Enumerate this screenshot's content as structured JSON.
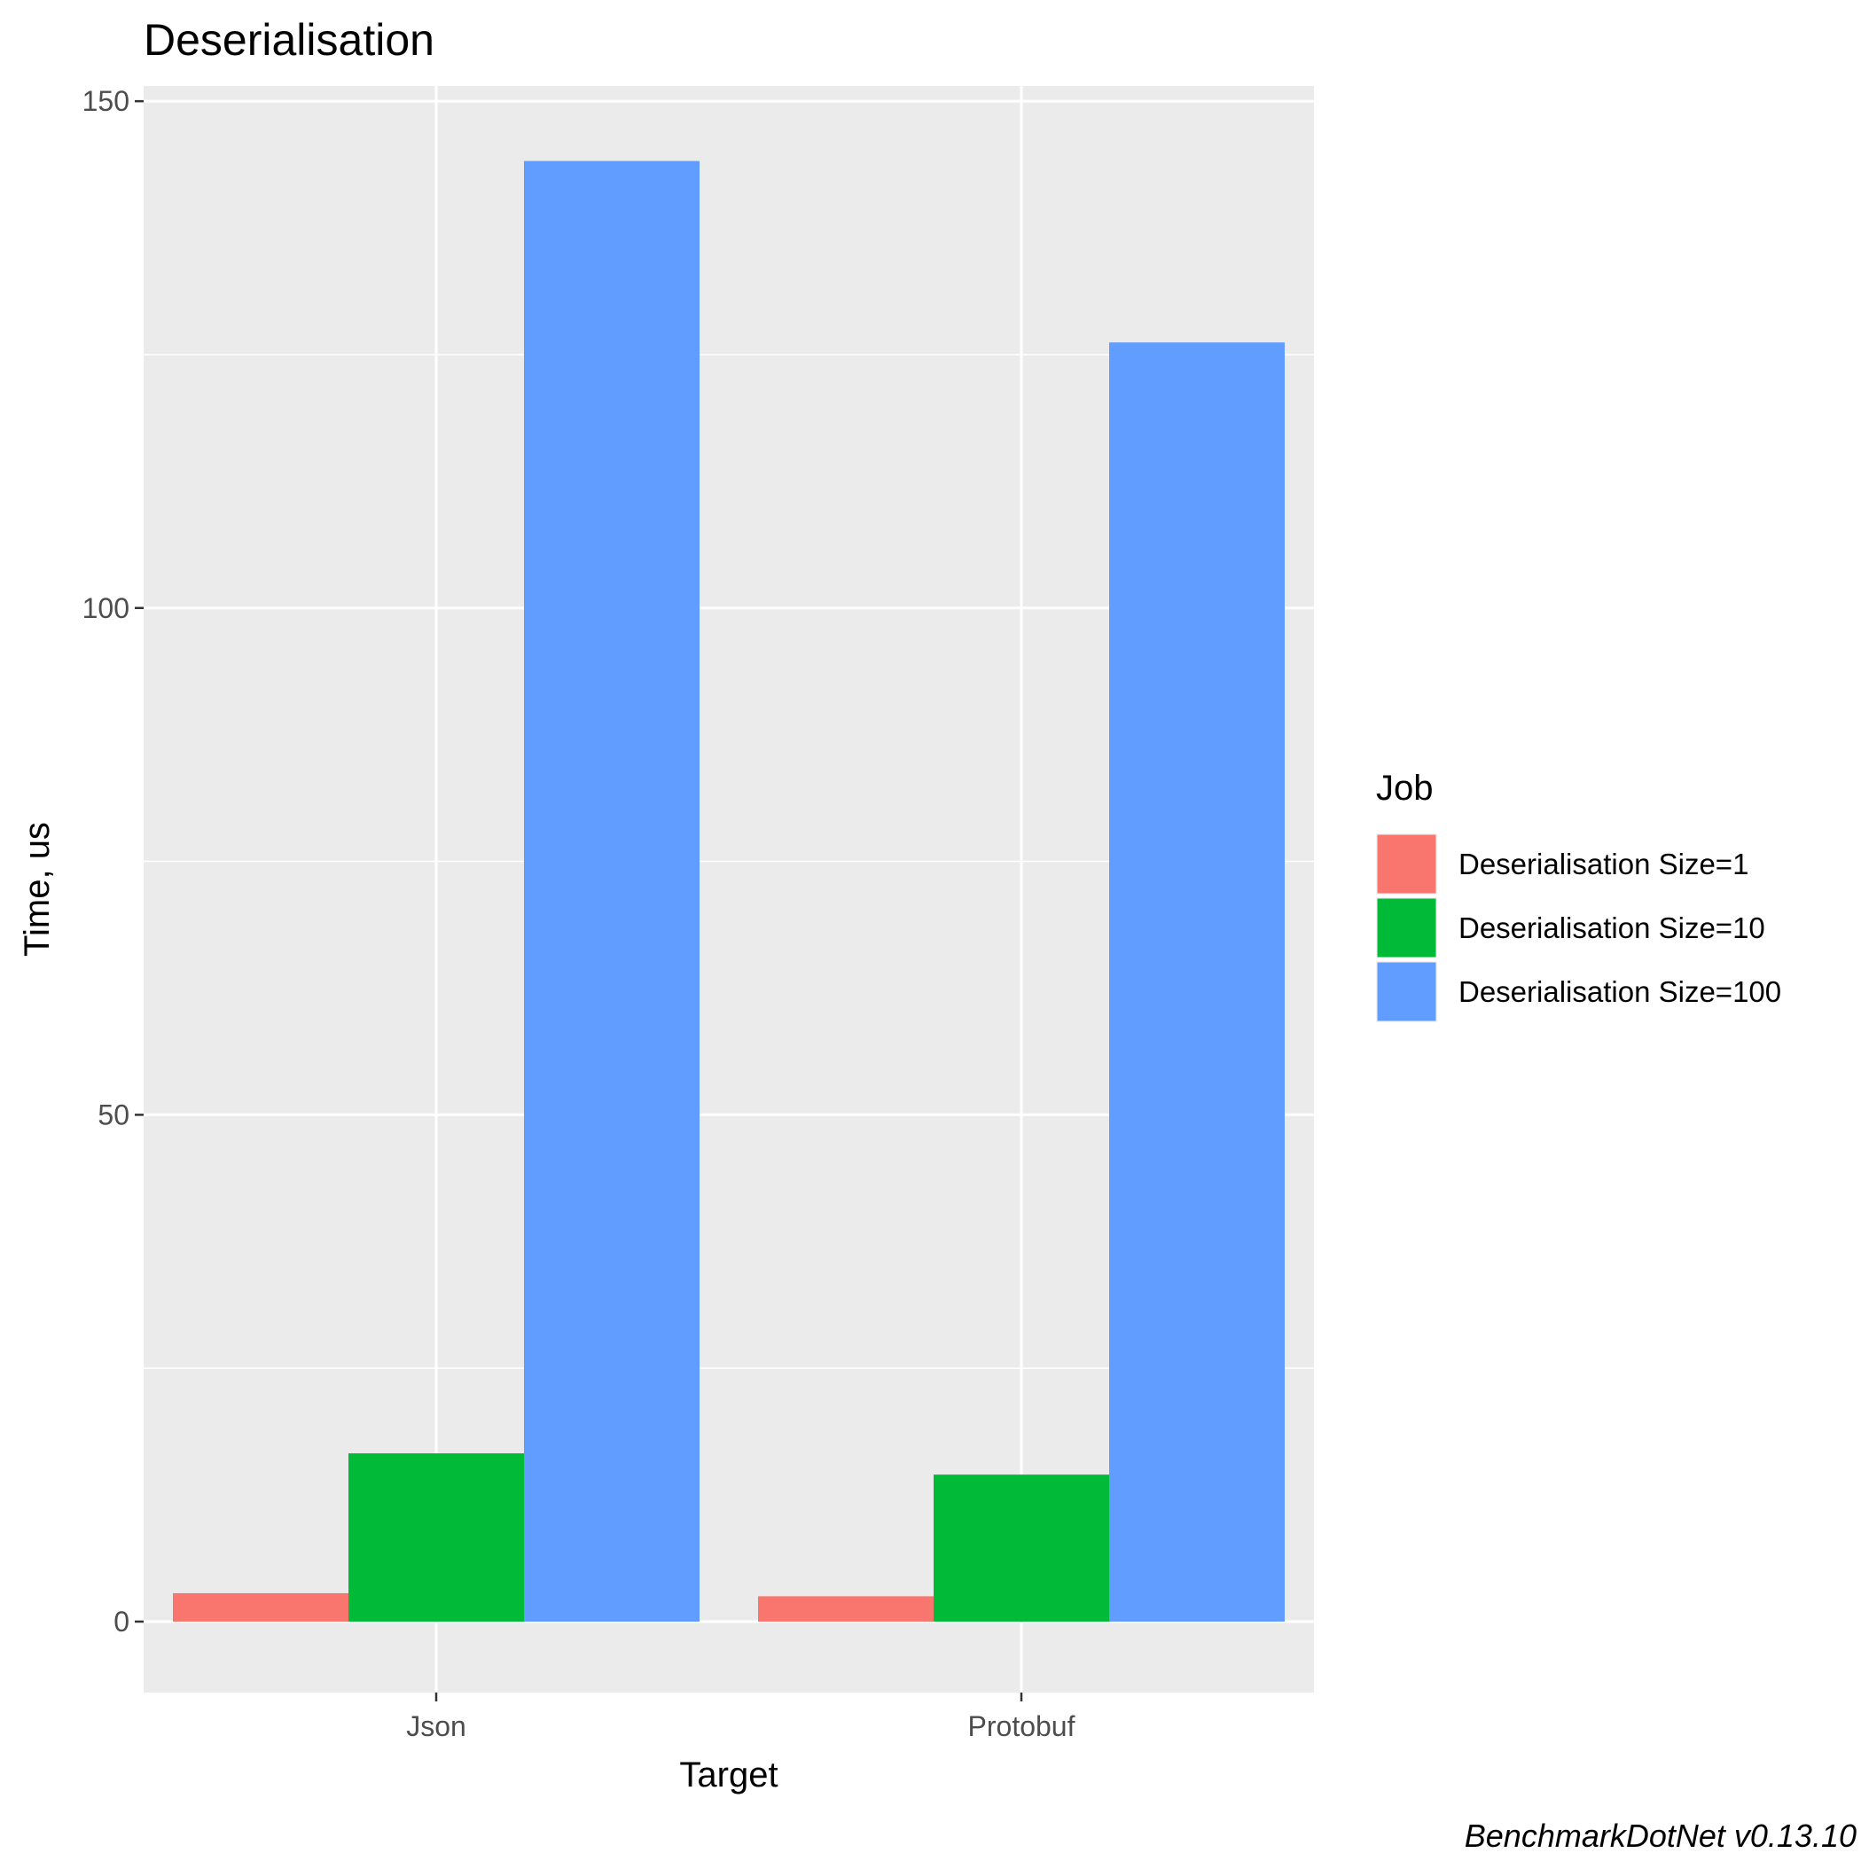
{
  "chart_data": {
    "type": "bar",
    "title": "Deserialisation",
    "xlabel": "Target",
    "ylabel": "Time, us",
    "categories": [
      "Json",
      "Protobuf"
    ],
    "ylim": [
      -7,
      151.5
    ],
    "yticks": [
      0,
      50,
      100,
      150
    ],
    "grid": true,
    "legend": {
      "title": "Job",
      "placement": "right"
    },
    "series": [
      {
        "name": "Deserialisation Size=1",
        "color": "#F8766D",
        "values": [
          2.8,
          2.5
        ]
      },
      {
        "name": "Deserialisation Size=10",
        "color": "#00BA38",
        "values": [
          16.6,
          14.5
        ]
      },
      {
        "name": "Deserialisation Size=100",
        "color": "#619CFF",
        "values": [
          144.1,
          126.2
        ]
      }
    ],
    "caption": "BenchmarkDotNet v0.13.10"
  }
}
